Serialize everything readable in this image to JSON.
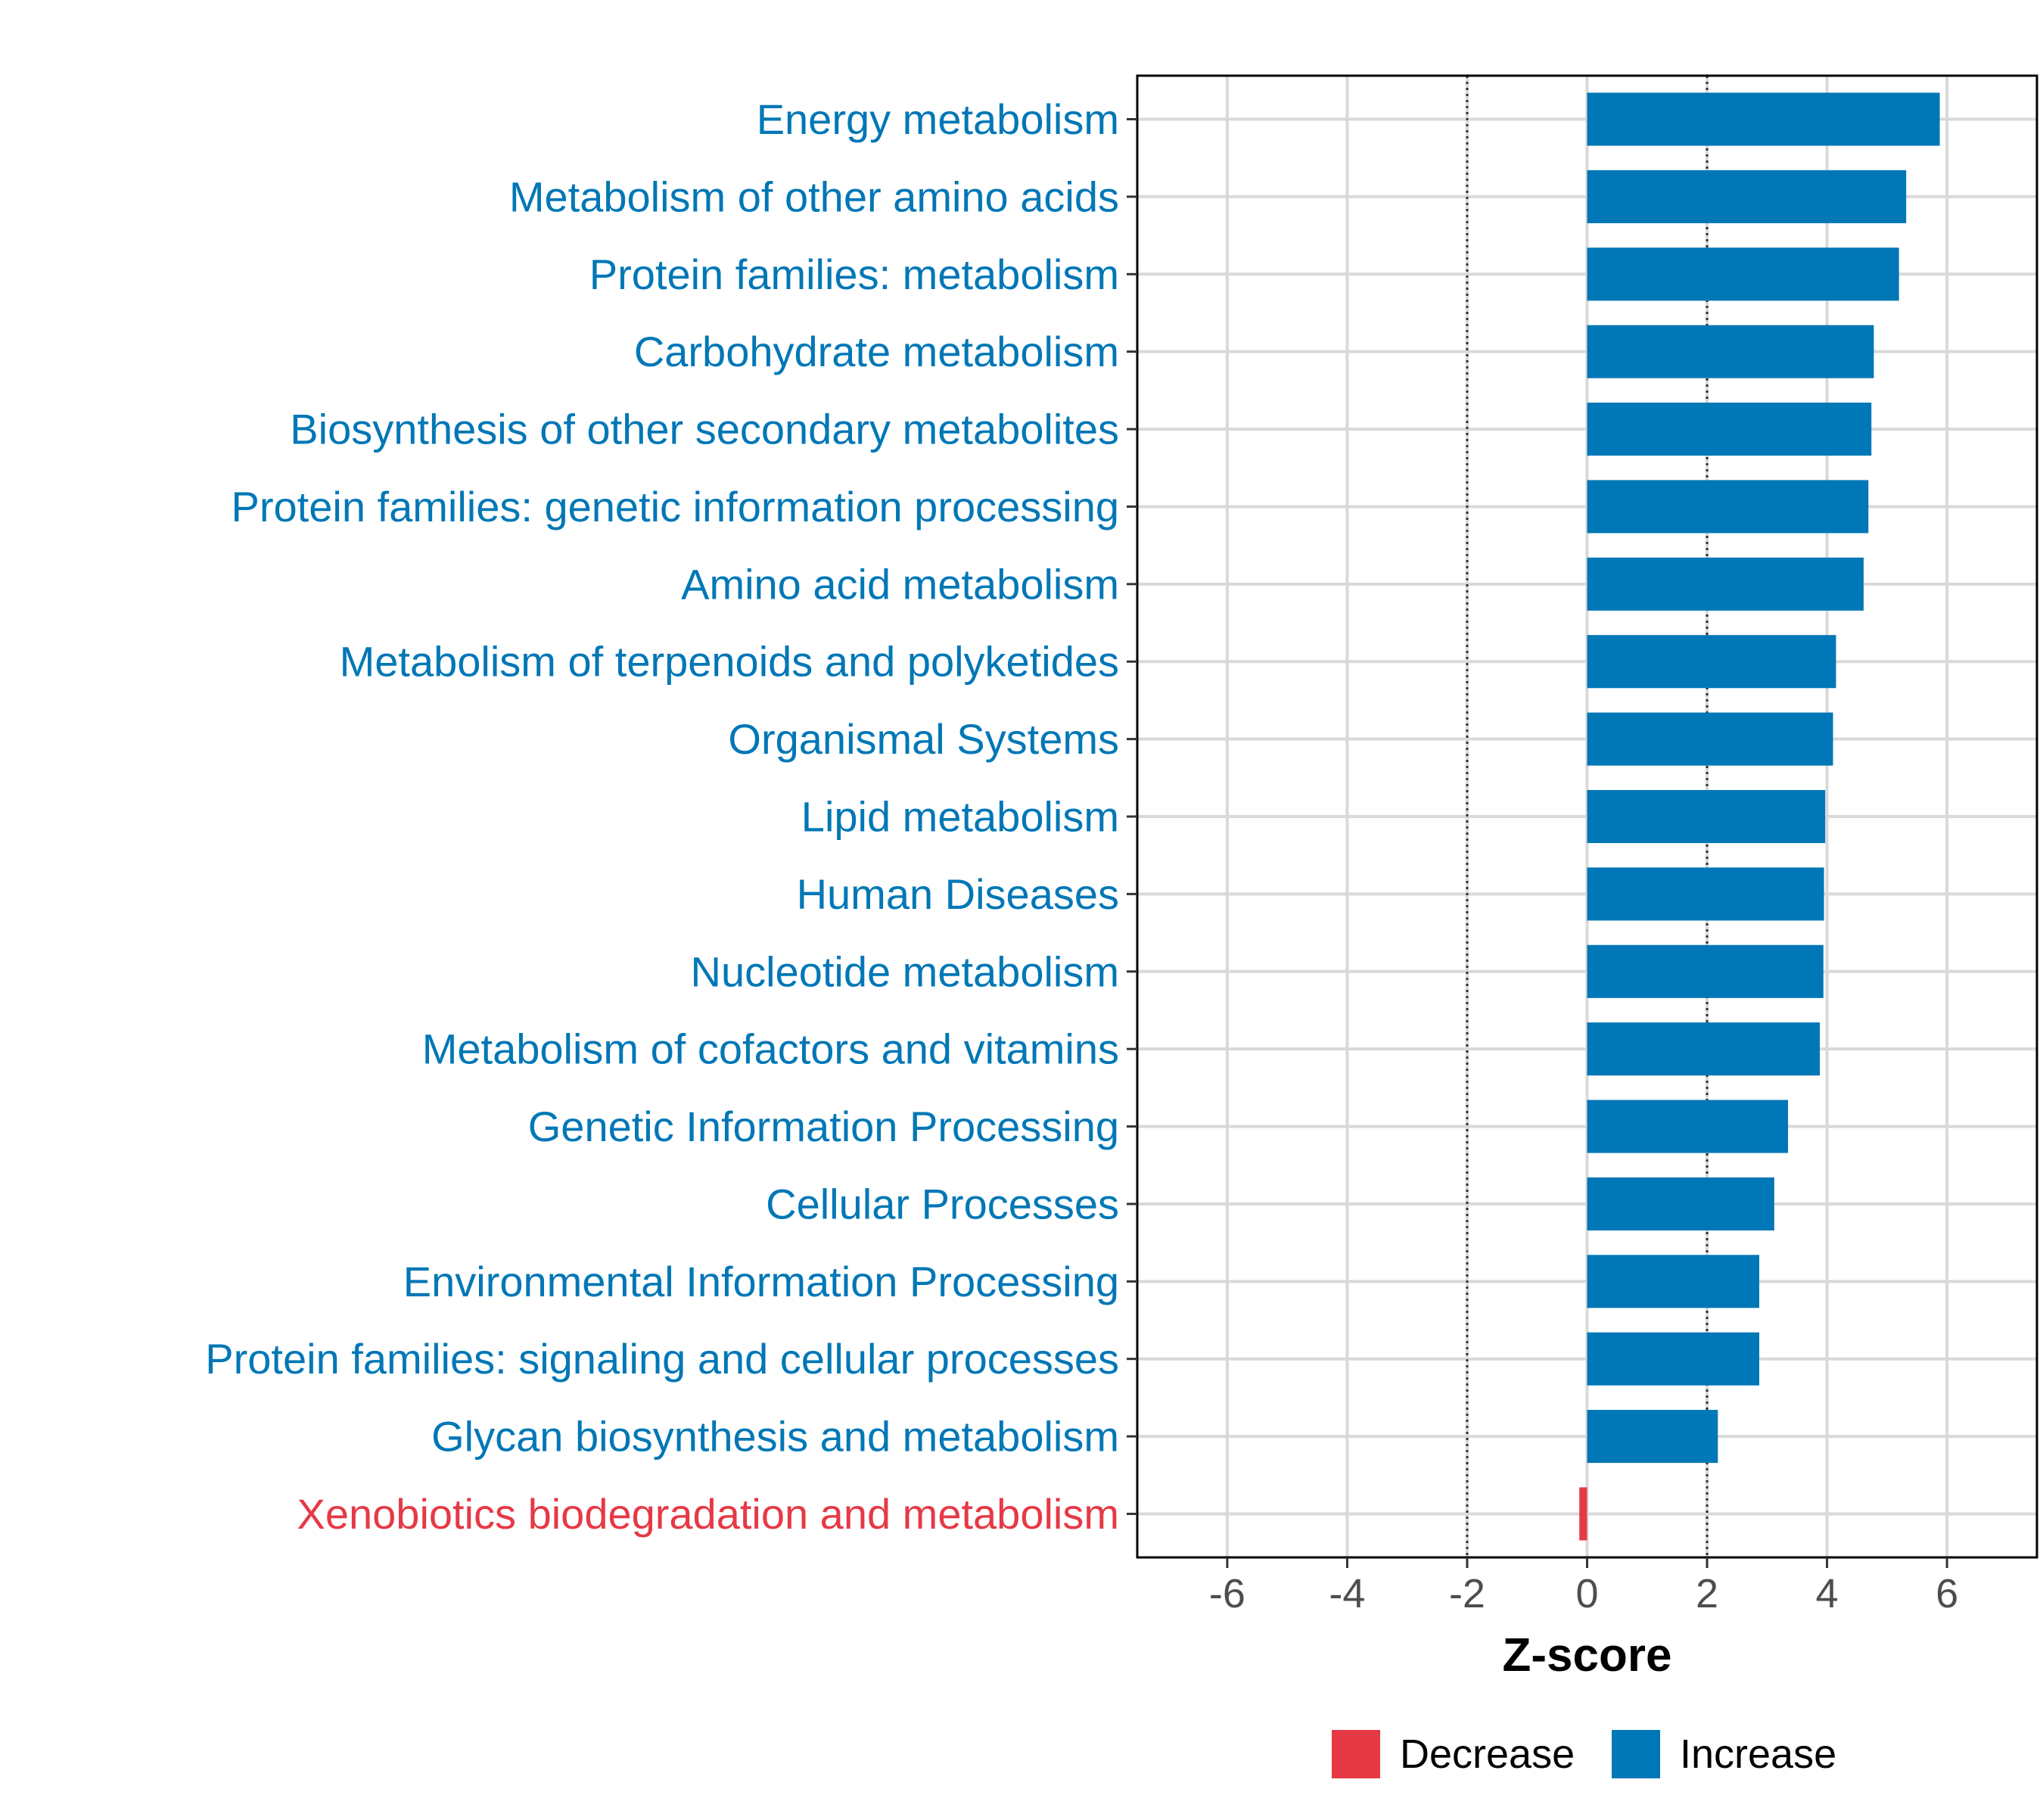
{
  "chart_data": {
    "type": "bar",
    "orientation": "horizontal",
    "title": "",
    "xlabel": "Z-score",
    "ylabel": "",
    "xlim": [
      -7.5,
      7.5
    ],
    "xticks": [
      -6,
      -4,
      -2,
      0,
      2,
      4,
      6
    ],
    "xtick_labels": [
      "-6",
      "-4",
      "-2",
      "0",
      "2",
      "4",
      "6"
    ],
    "reference_lines": [
      -2,
      2
    ],
    "grid": true,
    "categories": [
      "Energy metabolism",
      "Metabolism of other amino acids",
      "Protein families: metabolism",
      "Carbohydrate metabolism",
      "Biosynthesis of other secondary metabolites",
      "Protein families: genetic information processing",
      "Amino acid metabolism",
      "Metabolism of terpenoids and polyketides",
      "Organismal Systems",
      "Lipid metabolism",
      "Human Diseases",
      "Nucleotide metabolism",
      "Metabolism of cofactors and vitamins",
      "Genetic Information Processing",
      "Cellular Processes",
      "Environmental Information Processing",
      "Protein families: signaling and cellular processes",
      "Glycan biosynthesis and metabolism",
      "Xenobiotics biodegradation and metabolism"
    ],
    "values": [
      5.88,
      5.32,
      5.2,
      4.78,
      4.74,
      4.69,
      4.61,
      4.15,
      4.1,
      3.97,
      3.95,
      3.94,
      3.88,
      3.35,
      3.12,
      2.87,
      2.87,
      2.18,
      -0.13
    ],
    "groups": [
      "Increase",
      "Increase",
      "Increase",
      "Increase",
      "Increase",
      "Increase",
      "Increase",
      "Increase",
      "Increase",
      "Increase",
      "Increase",
      "Increase",
      "Increase",
      "Increase",
      "Increase",
      "Increase",
      "Increase",
      "Increase",
      "Decrease"
    ],
    "legend": {
      "position": "bottom",
      "items": [
        {
          "label": "Decrease",
          "color": "#E63946"
        },
        {
          "label": "Increase",
          "color": "#0077B6"
        }
      ]
    },
    "colors": {
      "Increase": "#0077B6",
      "Decrease": "#E63946"
    }
  }
}
